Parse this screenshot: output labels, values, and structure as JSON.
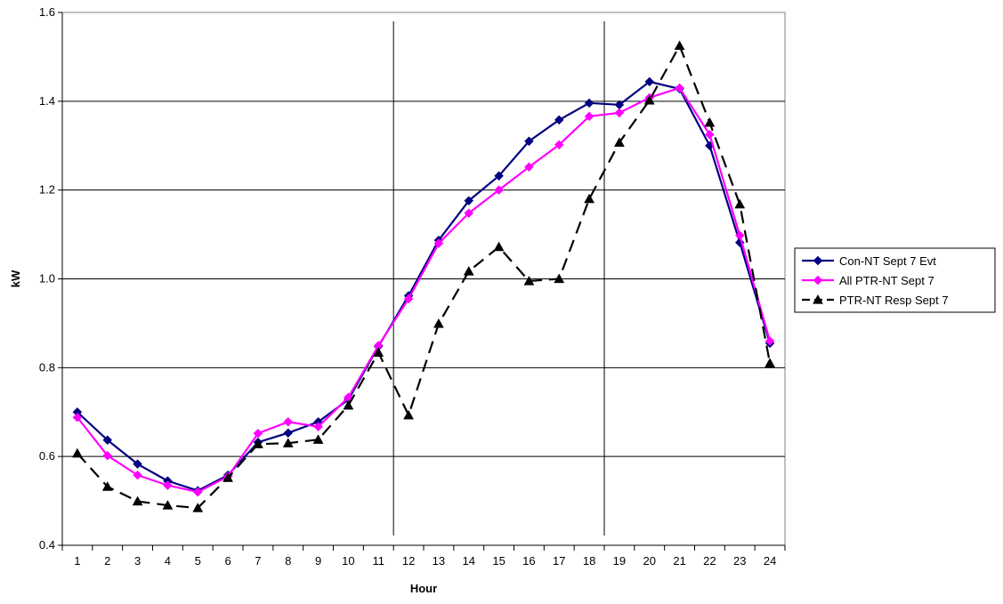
{
  "chart_data": {
    "type": "line",
    "title": "",
    "xlabel": "Hour",
    "ylabel": "kW",
    "categories": [
      "1",
      "2",
      "3",
      "4",
      "5",
      "6",
      "7",
      "8",
      "9",
      "10",
      "11",
      "12",
      "13",
      "14",
      "15",
      "16",
      "17",
      "18",
      "19",
      "20",
      "21",
      "22",
      "23",
      "24"
    ],
    "ylim": [
      0.4,
      1.6
    ],
    "yticks": [
      "0.4",
      "0.6",
      "0.8",
      "1.0",
      "1.2",
      "1.4",
      "1.6"
    ],
    "grid": "horizontal",
    "legend_position": "right",
    "event_markers_hours": [
      11.5,
      18.5
    ],
    "series": [
      {
        "name": "Con-NT Sept 7 Evt",
        "color": "#000080",
        "marker": "diamond",
        "dash": "solid",
        "values": [
          0.7,
          0.637,
          0.583,
          0.545,
          0.523,
          0.558,
          0.632,
          0.653,
          0.678,
          0.728,
          0.848,
          0.962,
          1.087,
          1.176,
          1.232,
          1.31,
          1.358,
          1.396,
          1.392,
          1.444,
          1.428,
          1.3,
          1.082,
          0.855
        ]
      },
      {
        "name": "All PTR-NT Sept 7",
        "color": "#ff00ff",
        "marker": "diamond",
        "dash": "solid",
        "values": [
          0.688,
          0.602,
          0.558,
          0.535,
          0.52,
          0.555,
          0.652,
          0.678,
          0.667,
          0.733,
          0.85,
          0.955,
          1.08,
          1.148,
          1.2,
          1.252,
          1.302,
          1.366,
          1.374,
          1.408,
          1.43,
          1.325,
          1.098,
          0.86
        ]
      },
      {
        "name": "PTR-NT Resp Sept 7",
        "color": "#000000",
        "marker": "triangle",
        "dash": "dashed",
        "values": [
          0.607,
          0.532,
          0.499,
          0.49,
          0.484,
          0.552,
          0.628,
          0.63,
          0.638,
          0.715,
          0.834,
          0.693,
          0.899,
          1.017,
          1.072,
          0.995,
          1.0,
          1.18,
          1.307,
          1.402,
          1.525,
          1.352,
          1.168,
          0.81
        ]
      }
    ]
  }
}
